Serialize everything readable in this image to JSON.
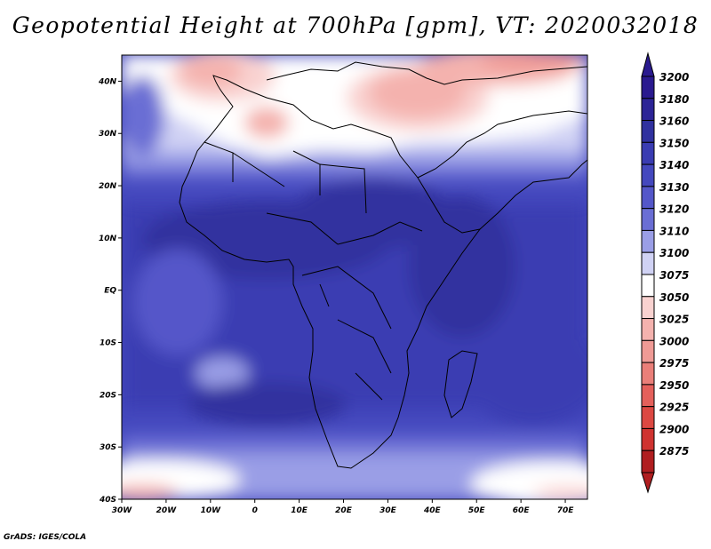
{
  "title": "Geopotential Height at 700hPa [gpm], VT: 2020032018",
  "footer": "GrADS: IGES/COLA",
  "map": {
    "lon_range": [
      -30,
      75
    ],
    "lat_range": [
      -40,
      45
    ],
    "lon_ticks": [
      {
        "value": -30,
        "label": "30W"
      },
      {
        "value": -20,
        "label": "20W"
      },
      {
        "value": -10,
        "label": "10W"
      },
      {
        "value": 0,
        "label": "0"
      },
      {
        "value": 10,
        "label": "10E"
      },
      {
        "value": 20,
        "label": "20E"
      },
      {
        "value": 30,
        "label": "30E"
      },
      {
        "value": 40,
        "label": "40E"
      },
      {
        "value": 50,
        "label": "50E"
      },
      {
        "value": 60,
        "label": "60E"
      },
      {
        "value": 70,
        "label": "70E"
      }
    ],
    "lat_ticks": [
      {
        "value": 40,
        "label": "40N"
      },
      {
        "value": 30,
        "label": "30N"
      },
      {
        "value": 20,
        "label": "20N"
      },
      {
        "value": 10,
        "label": "10N"
      },
      {
        "value": 0,
        "label": "EQ"
      },
      {
        "value": -10,
        "label": "10S"
      },
      {
        "value": -20,
        "label": "20S"
      },
      {
        "value": -30,
        "label": "30S"
      },
      {
        "value": -40,
        "label": "40S"
      }
    ]
  },
  "colorbar": {
    "levels": [
      {
        "label": "3200",
        "color": "#2a1a8f"
      },
      {
        "label": "3180",
        "color": "#2c2496"
      },
      {
        "label": "3160",
        "color": "#30319f"
      },
      {
        "label": "3150",
        "color": "#3a3cb2"
      },
      {
        "label": "3140",
        "color": "#4448be"
      },
      {
        "label": "3130",
        "color": "#5457c9"
      },
      {
        "label": "3120",
        "color": "#6a6ed4"
      },
      {
        "label": "3110",
        "color": "#9a9ee6"
      },
      {
        "label": "3100",
        "color": "#d0d2f4"
      },
      {
        "label": "3075",
        "color": "#ffffff"
      },
      {
        "label": "3050",
        "color": "#f9d2d0"
      },
      {
        "label": "3025",
        "color": "#f4b2ae"
      },
      {
        "label": "3000",
        "color": "#ef9a95"
      },
      {
        "label": "2975",
        "color": "#ea7f79"
      },
      {
        "label": "2950",
        "color": "#e4605b"
      },
      {
        "label": "2925",
        "color": "#dc4842"
      },
      {
        "label": "2900",
        "color": "#cf3330"
      },
      {
        "label": "2875",
        "color": "#b01e20"
      }
    ]
  }
}
